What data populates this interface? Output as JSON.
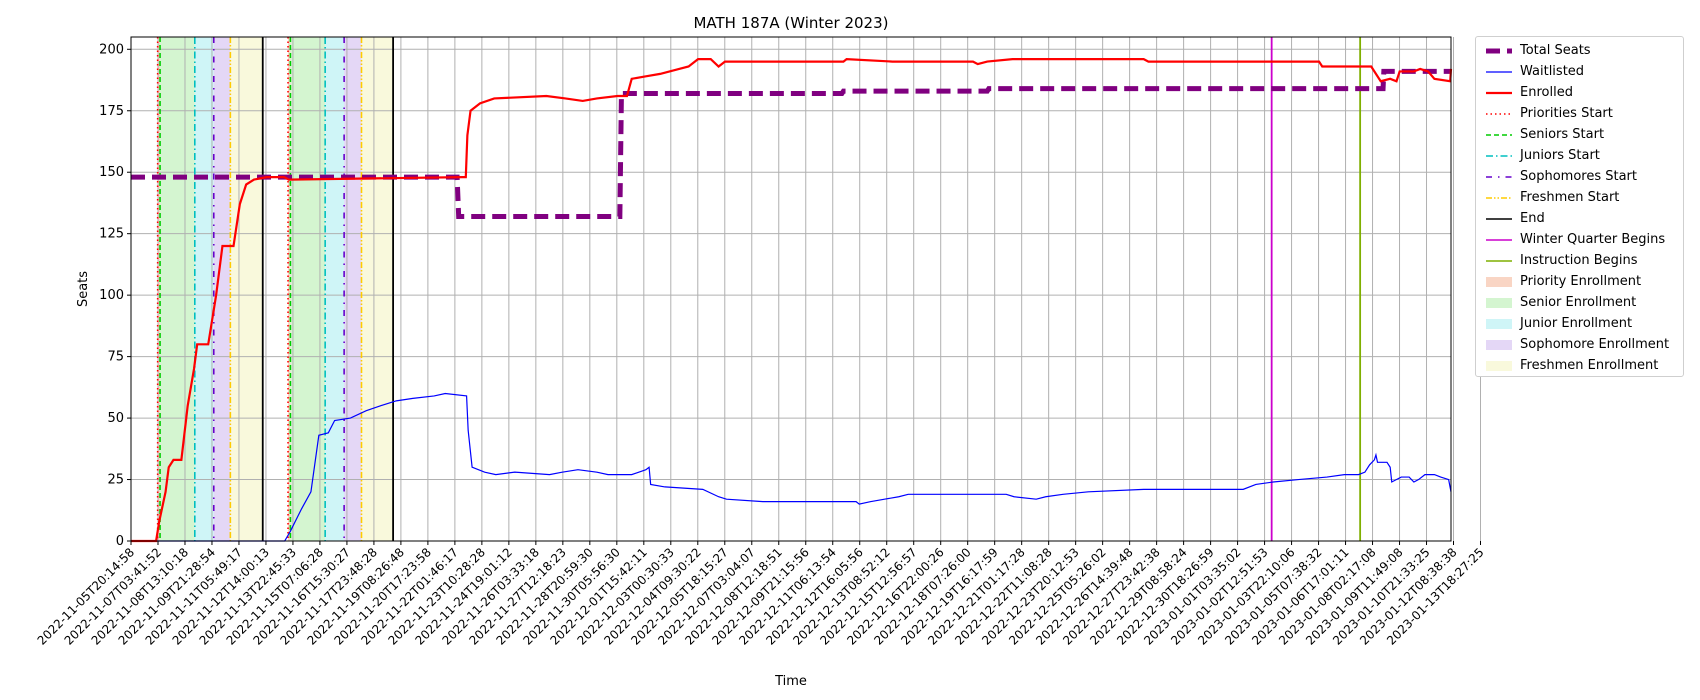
{
  "chart_data": {
    "type": "line",
    "title": "MATH 187A (Winter 2023)",
    "xlabel": "Time",
    "ylabel": "Seats",
    "ylim": [
      0,
      205
    ],
    "xlim": [
      "2022-11-05T20:14:58",
      "2023-01-14T11:00:00"
    ],
    "grid": true,
    "legend_position": "outside right, top",
    "y_ticks": [
      0,
      25,
      50,
      75,
      100,
      125,
      150,
      175,
      200
    ],
    "x_tick_labels": [
      "2022-11-05T20:14:58",
      "2022-11-07T03:41:52",
      "2022-11-08T13:10:18",
      "2022-11-09T21:28:54",
      "2022-11-11T05:49:17",
      "2022-11-12T14:00:13",
      "2022-11-13T22:45:33",
      "2022-11-15T07:06:28",
      "2022-11-16T15:30:27",
      "2022-11-17T23:48:28",
      "2022-11-19T08:26:48",
      "2022-11-20T17:23:58",
      "2022-11-22T01:46:17",
      "2022-11-23T10:28:28",
      "2022-11-24T19:01:12",
      "2022-11-26T03:33:18",
      "2022-11-27T12:18:23",
      "2022-11-28T20:59:30",
      "2022-11-30T05:56:30",
      "2022-12-01T15:42:11",
      "2022-12-03T00:30:33",
      "2022-12-04T09:30:22",
      "2022-12-05T18:15:27",
      "2022-12-07T03:04:07",
      "2022-12-08T12:18:51",
      "2022-12-09T21:15:56",
      "2022-12-11T06:13:54",
      "2022-12-12T16:05:56",
      "2022-12-13T08:52:12",
      "2022-12-15T12:56:57",
      "2022-12-16T22:00:26",
      "2022-12-18T07:26:00",
      "2022-12-19T16:17:59",
      "2022-12-21T01:17:28",
      "2022-12-22T11:08:28",
      "2022-12-23T20:12:53",
      "2022-12-25T05:26:02",
      "2022-12-26T14:39:48",
      "2022-12-27T23:42:38",
      "2022-12-29T08:58:24",
      "2022-12-30T18:26:59",
      "2023-01-01T03:35:02",
      "2023-01-02T12:51:53",
      "2023-01-03T22:10:06",
      "2023-01-05T07:38:32",
      "2023-01-06T17:01:11",
      "2023-01-08T02:17:08",
      "2023-01-09T11:49:08",
      "2023-01-10T21:33:25",
      "2023-01-12T08:38:38",
      "2023-01-13T18:27:25"
    ],
    "series": [
      {
        "name": "Total Seats",
        "color": "#800080",
        "style": "dashed-thick",
        "points": [
          [
            "2022-11-05T20:14:58",
            148
          ],
          [
            "2022-11-23T01:00:00",
            148
          ],
          [
            "2022-11-23T03:00:00",
            132
          ],
          [
            "2022-12-01T15:00:00",
            132
          ],
          [
            "2022-12-01T17:00:00",
            182
          ],
          [
            "2022-12-13T08:00:00",
            182
          ],
          [
            "2022-12-13T10:00:00",
            183
          ],
          [
            "2022-12-21T00:00:00",
            183
          ],
          [
            "2022-12-21T02:00:00",
            184
          ],
          [
            "2023-01-10T21:00:00",
            184
          ],
          [
            "2023-01-10T22:00:00",
            191
          ],
          [
            "2023-01-14T11:00:00",
            191
          ]
        ]
      },
      {
        "name": "Waitlisted",
        "color": "#0000ff",
        "style": "solid-thin",
        "points": [
          [
            "2022-11-05T20:14:58",
            0
          ],
          [
            "2022-11-13T22:45:33",
            0
          ],
          [
            "2022-11-14T06:00:00",
            4
          ],
          [
            "2022-11-14T20:00:00",
            13
          ],
          [
            "2022-11-15T08:00:00",
            20
          ],
          [
            "2022-11-15T18:00:00",
            43
          ],
          [
            "2022-11-16T06:00:00",
            44
          ],
          [
            "2022-11-16T14:00:00",
            49
          ],
          [
            "2022-11-17T10:00:00",
            50
          ],
          [
            "2022-11-18T06:00:00",
            53
          ],
          [
            "2022-11-19T00:00:00",
            55
          ],
          [
            "2022-11-19T20:00:00",
            57
          ],
          [
            "2022-11-20T17:00:00",
            58
          ],
          [
            "2022-11-21T20:00:00",
            59
          ],
          [
            "2022-11-22T10:00:00",
            60
          ],
          [
            "2022-11-23T13:00:00",
            59
          ],
          [
            "2022-11-23T15:00:00",
            45
          ],
          [
            "2022-11-23T20:00:00",
            30
          ],
          [
            "2022-11-24T12:00:00",
            28
          ],
          [
            "2022-11-25T02:00:00",
            27
          ],
          [
            "2022-11-26T02:00:00",
            28
          ],
          [
            "2022-11-27T22:00:00",
            27
          ],
          [
            "2022-11-28T14:00:00",
            28
          ],
          [
            "2022-11-29T10:00:00",
            29
          ],
          [
            "2022-11-30T10:00:00",
            28
          ],
          [
            "2022-12-01T00:00:00",
            27
          ],
          [
            "2022-12-02T06:00:00",
            27
          ],
          [
            "2022-12-03T00:00:00",
            29
          ],
          [
            "2022-12-03T04:00:00",
            30
          ],
          [
            "2022-12-03T06:00:00",
            23
          ],
          [
            "2022-12-04T00:00:00",
            22
          ],
          [
            "2022-12-06T00:00:00",
            21
          ],
          [
            "2022-12-06T20:00:00",
            18
          ],
          [
            "2022-12-07T06:00:00",
            17
          ],
          [
            "2022-12-09T04:00:00",
            16
          ],
          [
            "2022-12-14T02:00:00",
            16
          ],
          [
            "2022-12-14T06:00:00",
            15
          ],
          [
            "2022-12-14T20:00:00",
            16
          ],
          [
            "2022-12-15T14:00:00",
            17
          ],
          [
            "2022-12-16T08:00:00",
            18
          ],
          [
            "2022-12-16T20:00:00",
            19
          ],
          [
            "2022-12-22T00:00:00",
            19
          ],
          [
            "2022-12-22T10:00:00",
            18
          ],
          [
            "2022-12-23T14:00:00",
            17
          ],
          [
            "2022-12-24T02:00:00",
            18
          ],
          [
            "2022-12-25T00:00:00",
            19
          ],
          [
            "2022-12-26T08:00:00",
            20
          ],
          [
            "2022-12-29T06:00:00",
            21
          ],
          [
            "2023-01-03T12:00:00",
            21
          ],
          [
            "2023-01-04T04:00:00",
            23
          ],
          [
            "2023-01-05T02:00:00",
            24
          ],
          [
            "2023-01-06T10:00:00",
            25
          ],
          [
            "2023-01-07T22:00:00",
            26
          ],
          [
            "2023-01-08T20:00:00",
            27
          ],
          [
            "2023-01-09T14:00:00",
            27
          ],
          [
            "2023-01-09T22:00:00",
            28
          ],
          [
            "2023-01-10T04:00:00",
            31
          ],
          [
            "2023-01-10T10:00:00",
            33
          ],
          [
            "2023-01-10T12:00:00",
            35
          ],
          [
            "2023-01-10T14:00:00",
            32
          ],
          [
            "2023-01-11T02:00:00",
            32
          ],
          [
            "2023-01-11T06:00:00",
            30
          ],
          [
            "2023-01-11T08:00:00",
            24
          ],
          [
            "2023-01-11T20:00:00",
            26
          ],
          [
            "2023-01-12T06:00:00",
            26
          ],
          [
            "2023-01-12T12:00:00",
            24
          ],
          [
            "2023-01-12T18:00:00",
            25
          ],
          [
            "2023-01-13T02:00:00",
            27
          ],
          [
            "2023-01-13T14:00:00",
            27
          ],
          [
            "2023-01-13T22:00:00",
            26
          ],
          [
            "2023-01-14T08:00:00",
            25
          ],
          [
            "2023-01-14T11:00:00",
            20
          ]
        ]
      },
      {
        "name": "Enrolled",
        "color": "#ff0000",
        "style": "solid-thick",
        "points": [
          [
            "2022-11-05T20:14:58",
            0
          ],
          [
            "2022-11-07T04:00:00",
            0
          ],
          [
            "2022-11-07T08:00:00",
            8
          ],
          [
            "2022-11-07T16:00:00",
            20
          ],
          [
            "2022-11-07T20:00:00",
            30
          ],
          [
            "2022-11-08T02:00:00",
            33
          ],
          [
            "2022-11-08T12:00:00",
            33
          ],
          [
            "2022-11-08T20:00:00",
            55
          ],
          [
            "2022-11-09T04:00:00",
            70
          ],
          [
            "2022-11-09T08:00:00",
            80
          ],
          [
            "2022-11-09T22:00:00",
            80
          ],
          [
            "2022-11-10T08:00:00",
            100
          ],
          [
            "2022-11-10T16:00:00",
            120
          ],
          [
            "2022-11-11T06:00:00",
            120
          ],
          [
            "2022-11-11T14:00:00",
            137
          ],
          [
            "2022-11-11T22:00:00",
            145
          ],
          [
            "2022-11-12T08:00:00",
            147
          ],
          [
            "2022-11-13T00:00:00",
            148
          ],
          [
            "2022-11-13T22:00:00",
            148
          ],
          [
            "2022-11-14T04:00:00",
            147
          ],
          [
            "2022-11-23T08:00:00",
            148
          ],
          [
            "2022-11-23T12:00:00",
            148
          ],
          [
            "2022-11-23T14:00:00",
            165
          ],
          [
            "2022-11-23T18:00:00",
            175
          ],
          [
            "2022-11-24T06:00:00",
            178
          ],
          [
            "2022-11-25T00:00:00",
            180
          ],
          [
            "2022-11-27T18:00:00",
            181
          ],
          [
            "2022-11-28T18:00:00",
            180
          ],
          [
            "2022-11-29T16:00:00",
            179
          ],
          [
            "2022-11-30T10:00:00",
            180
          ],
          [
            "2022-12-01T12:00:00",
            181
          ],
          [
            "2022-12-02T00:00:00",
            181
          ],
          [
            "2022-12-02T06:00:00",
            188
          ],
          [
            "2022-12-03T00:00:00",
            189
          ],
          [
            "2022-12-03T18:00:00",
            190
          ],
          [
            "2022-12-04T18:00:00",
            192
          ],
          [
            "2022-12-05T06:00:00",
            193
          ],
          [
            "2022-12-05T18:00:00",
            196
          ],
          [
            "2022-12-06T10:00:00",
            196
          ],
          [
            "2022-12-06T20:00:00",
            193
          ],
          [
            "2022-12-07T04:00:00",
            195
          ],
          [
            "2022-12-13T10:00:00",
            195
          ],
          [
            "2022-12-13T14:00:00",
            196
          ],
          [
            "2022-12-16T00:00:00",
            195
          ],
          [
            "2022-12-20T06:00:00",
            195
          ],
          [
            "2022-12-20T12:00:00",
            194
          ],
          [
            "2022-12-21T00:00:00",
            195
          ],
          [
            "2022-12-22T08:00:00",
            196
          ],
          [
            "2022-12-29T06:00:00",
            196
          ],
          [
            "2022-12-29T12:00:00",
            195
          ],
          [
            "2023-01-07T12:00:00",
            195
          ],
          [
            "2023-01-07T16:00:00",
            193
          ],
          [
            "2023-01-10T06:00:00",
            193
          ],
          [
            "2023-01-10T18:00:00",
            187
          ],
          [
            "2023-01-11T06:00:00",
            188
          ],
          [
            "2023-01-11T14:00:00",
            187
          ],
          [
            "2023-01-11T18:00:00",
            191
          ],
          [
            "2023-01-12T12:00:00",
            191
          ],
          [
            "2023-01-12T20:00:00",
            192
          ],
          [
            "2023-01-13T06:00:00",
            191
          ],
          [
            "2023-01-13T14:00:00",
            188
          ],
          [
            "2023-01-14T10:00:00",
            187
          ],
          [
            "2023-01-14T11:00:00",
            192
          ]
        ]
      }
    ],
    "event_lines": [
      {
        "name": "Priorities Start",
        "color": "#ff0000",
        "dash": "dotted",
        "times": [
          "2022-11-07T06:00:00",
          "2022-11-14T03:00:00"
        ]
      },
      {
        "name": "Seniors Start",
        "color": "#00cc00",
        "dash": "dashed",
        "times": [
          "2022-11-07T09:00:00",
          "2022-11-14T06:00:00"
        ]
      },
      {
        "name": "Juniors Start",
        "color": "#00bfbf",
        "dash": "dashdot",
        "times": [
          "2022-11-09T05:00:00",
          "2022-11-16T02:00:00"
        ]
      },
      {
        "name": "Sophomores Start",
        "color": "#6600cc",
        "dash": "loosedashdot",
        "times": [
          "2022-11-10T05:00:00",
          "2022-11-17T02:00:00"
        ]
      },
      {
        "name": "Freshmen Start",
        "color": "#ffcc00",
        "dash": "dashdotdot",
        "times": [
          "2022-11-11T02:00:00",
          "2022-11-18T00:00:00"
        ]
      },
      {
        "name": "End",
        "color": "#000000",
        "dash": "solid",
        "times": [
          "2022-11-12T19:00:00",
          "2022-11-19T16:00:00"
        ]
      },
      {
        "name": "Winter Quarter Begins",
        "color": "#cc00cc",
        "dash": "solid",
        "times": [
          "2023-01-05T00:00:00"
        ]
      },
      {
        "name": "Instruction Begins",
        "color": "#7faf00",
        "dash": "solid",
        "times": [
          "2023-01-09T16:00:00"
        ]
      }
    ],
    "enrollment_periods": [
      {
        "name": "Priority Enrollment",
        "color": "#f4b393",
        "ranges": [
          [
            "2022-11-07T06:00:00",
            "2022-11-07T09:00:00"
          ],
          [
            "2022-11-14T03:00:00",
            "2022-11-14T06:00:00"
          ]
        ]
      },
      {
        "name": "Senior Enrollment",
        "color": "#b0ecaa",
        "ranges": [
          [
            "2022-11-07T09:00:00",
            "2022-11-09T05:00:00"
          ],
          [
            "2022-11-14T06:00:00",
            "2022-11-16T02:00:00"
          ]
        ]
      },
      {
        "name": "Junior Enrollment",
        "color": "#a8ecf0",
        "ranges": [
          [
            "2022-11-09T05:00:00",
            "2022-11-10T05:00:00"
          ],
          [
            "2022-11-16T02:00:00",
            "2022-11-17T02:00:00"
          ]
        ]
      },
      {
        "name": "Sophomore Enrollment",
        "color": "#cdb6ee",
        "ranges": [
          [
            "2022-11-10T05:00:00",
            "2022-11-11T02:00:00"
          ],
          [
            "2022-11-17T02:00:00",
            "2022-11-18T00:00:00"
          ]
        ]
      },
      {
        "name": "Freshmen Enrollment",
        "color": "#f4f4c0",
        "ranges": [
          [
            "2022-11-11T02:00:00",
            "2022-11-12T19:00:00"
          ],
          [
            "2022-11-18T00:00:00",
            "2022-11-19T16:00:00"
          ]
        ]
      }
    ]
  },
  "legend": {
    "items": [
      {
        "label": "Total Seats"
      },
      {
        "label": "Waitlisted"
      },
      {
        "label": "Enrolled"
      },
      {
        "label": "Priorities Start"
      },
      {
        "label": "Seniors Start"
      },
      {
        "label": "Juniors Start"
      },
      {
        "label": "Sophomores Start"
      },
      {
        "label": "Freshmen Start"
      },
      {
        "label": "End"
      },
      {
        "label": "Winter Quarter Begins"
      },
      {
        "label": "Instruction Begins"
      },
      {
        "label": "Priority Enrollment"
      },
      {
        "label": "Senior Enrollment"
      },
      {
        "label": "Junior Enrollment"
      },
      {
        "label": "Sophomore Enrollment"
      },
      {
        "label": "Freshmen Enrollment"
      }
    ]
  }
}
